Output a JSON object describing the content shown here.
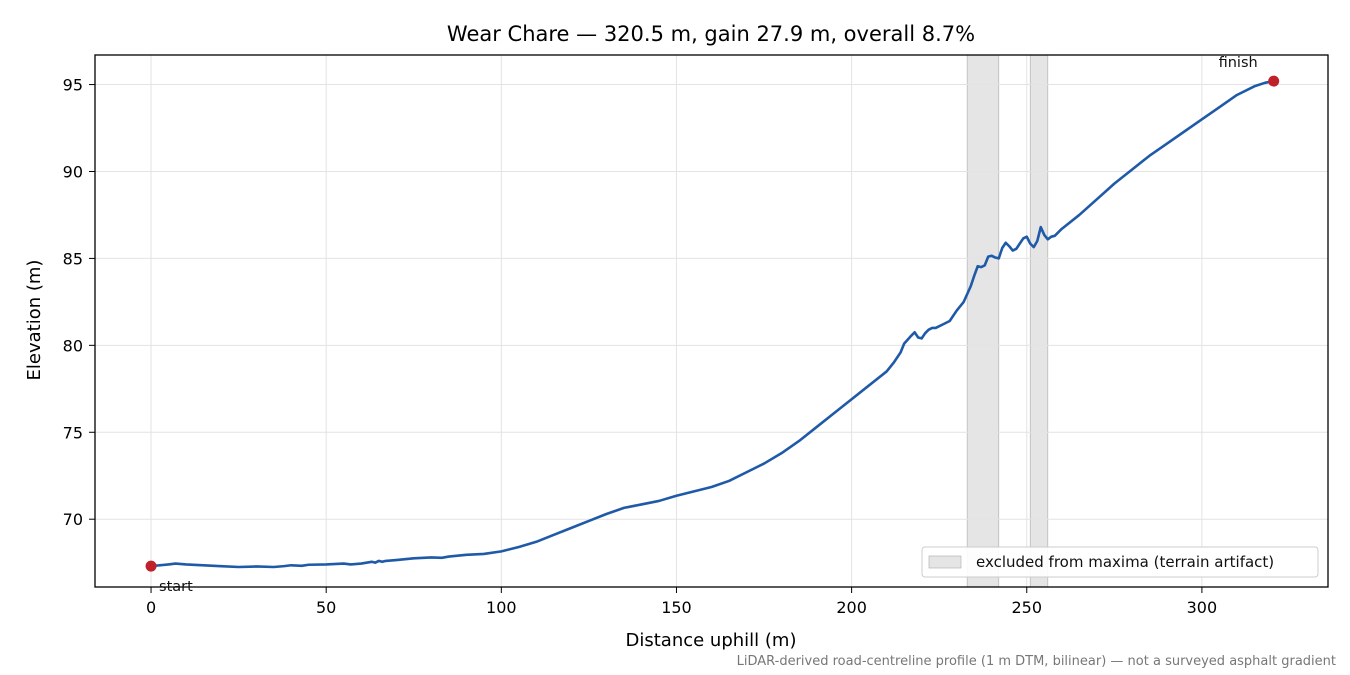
{
  "chart_data": {
    "type": "line",
    "title": "Wear Chare — 320.5 m, gain 27.9 m, overall 8.7%",
    "xlabel": "Distance uphill (m)",
    "ylabel": "Elevation (m)",
    "xlim": [
      -16,
      336
    ],
    "ylim": [
      66.1,
      96.7
    ],
    "xticks": [
      0,
      50,
      100,
      150,
      200,
      250,
      300
    ],
    "yticks": [
      70,
      75,
      80,
      85,
      90,
      95
    ],
    "grid": true,
    "legend_position": "bottom-right",
    "footnote": "LiDAR-derived road-centreline profile (1 m DTM, bilinear) — not a surveyed asphalt gradient",
    "colors": {
      "line": "#1f5aa8",
      "marker": "#c0202a",
      "band": "#d3d3d3"
    },
    "excluded_ranges": [
      [
        233,
        242
      ],
      [
        251,
        256
      ]
    ],
    "legend": [
      "excluded from maxima (terrain artifact)"
    ],
    "annotations": [
      {
        "text": "start",
        "x": 0,
        "y": 67.3
      },
      {
        "text": "finish",
        "x": 320.5,
        "y": 95.2
      }
    ],
    "series": [
      {
        "x": [
          0,
          5,
          7,
          10,
          15,
          20,
          25,
          30,
          35,
          38,
          40,
          43,
          45,
          50,
          55,
          57,
          60,
          63,
          64,
          65,
          66,
          67,
          70,
          75,
          80,
          83,
          85,
          90,
          95,
          100,
          105,
          110,
          115,
          120,
          125,
          130,
          135,
          140,
          145,
          150,
          155,
          160,
          165,
          170,
          175,
          180,
          185,
          190,
          195,
          200,
          205,
          210,
          212,
          214,
          215,
          217,
          218,
          219,
          220,
          221,
          222,
          223,
          224,
          226,
          228,
          230,
          232,
          234,
          235,
          236,
          237,
          238,
          239,
          240,
          241,
          242,
          243,
          244,
          245,
          246,
          247,
          248,
          249,
          250,
          251,
          252,
          253,
          254,
          255,
          256,
          257,
          258,
          260,
          265,
          270,
          275,
          280,
          285,
          290,
          295,
          300,
          305,
          310,
          315,
          318,
          320.5
        ],
        "y": [
          67.3,
          67.4,
          67.45,
          67.4,
          67.35,
          67.3,
          67.25,
          67.28,
          67.25,
          67.3,
          67.35,
          67.32,
          67.38,
          67.4,
          67.45,
          67.4,
          67.45,
          67.55,
          67.5,
          67.6,
          67.55,
          67.6,
          67.65,
          67.75,
          67.8,
          67.78,
          67.85,
          67.95,
          68.0,
          68.15,
          68.4,
          68.7,
          69.1,
          69.5,
          69.9,
          70.3,
          70.65,
          70.85,
          71.05,
          71.35,
          71.6,
          71.85,
          72.2,
          72.7,
          73.2,
          73.8,
          74.5,
          75.3,
          76.1,
          76.9,
          77.7,
          78.5,
          79.0,
          79.6,
          80.1,
          80.55,
          80.75,
          80.45,
          80.4,
          80.7,
          80.9,
          81.0,
          81.0,
          81.2,
          81.4,
          82.0,
          82.5,
          83.4,
          84.0,
          84.55,
          84.5,
          84.6,
          85.1,
          85.15,
          85.05,
          85.0,
          85.6,
          85.9,
          85.7,
          85.45,
          85.55,
          85.85,
          86.15,
          86.25,
          85.85,
          85.65,
          86.0,
          86.8,
          86.35,
          86.1,
          86.25,
          86.3,
          86.7,
          87.5,
          88.4,
          89.3,
          90.1,
          90.9,
          91.6,
          92.3,
          93.0,
          93.7,
          94.4,
          94.9,
          95.1,
          95.2
        ]
      }
    ]
  }
}
